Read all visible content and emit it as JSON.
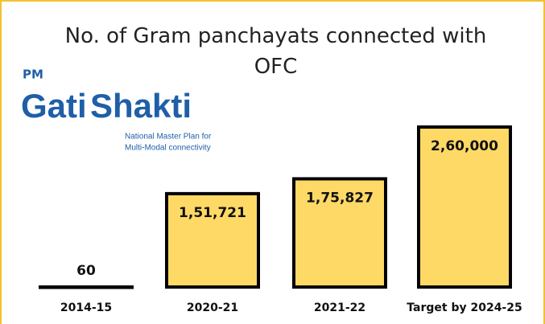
{
  "logo": {
    "prefix": "PM",
    "name_1": "Gati",
    "name_2": "Shakti",
    "tagline_1": "National Master Plan for",
    "tagline_2": "Multi-Modal connectivity"
  },
  "chart_data": {
    "type": "bar",
    "title": "No. of Gram panchayats connected with OFC",
    "categories": [
      "2014-15",
      "2020-21",
      "2021-22",
      "Target by 2024-25"
    ],
    "values": [
      60,
      151721,
      175827,
      260000
    ],
    "value_labels": [
      "60",
      "1,51,721",
      "1,75,827",
      "2,60,000"
    ],
    "color": "#ffd966"
  }
}
